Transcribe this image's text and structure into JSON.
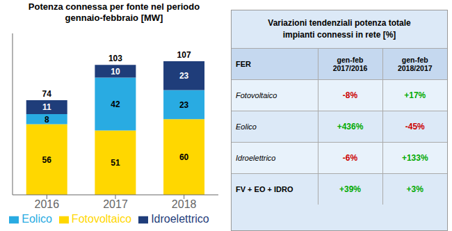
{
  "chart_data": [
    {
      "type": "bar",
      "title": "Potenza connessa per fonte nel periodo\ngennaio-febbraio [MW]",
      "categories": [
        "2016",
        "2017",
        "2018"
      ],
      "series": [
        {
          "name": "Fotovoltaico",
          "color": "#FFD700",
          "values": [
            56,
            51,
            60
          ]
        },
        {
          "name": "Eolico",
          "color": "#29ABE2",
          "values": [
            8,
            42,
            23
          ]
        },
        {
          "name": "Idroelettrico",
          "color": "#1F3D7A",
          "values": [
            11,
            10,
            23
          ]
        }
      ],
      "totals": [
        74,
        103,
        107
      ],
      "stacked": true,
      "data_labels": true,
      "ylim": [
        0,
        128
      ],
      "yticks": [],
      "tick_labels": "x",
      "grid": false,
      "legend": "bottom"
    },
    {
      "type": "table",
      "title": "Variazioni tendenziali potenza totale\nimpianti connessi in rete [%]",
      "xlabel": "FER",
      "categories": [
        "Fotovoltaico",
        "Eolico",
        "Idroelettrico",
        "FV + EO + IDRO"
      ],
      "series": [
        {
          "name": "gen-feb\n2017/2016",
          "values": [
            -8,
            436,
            -6,
            39
          ],
          "value_labels": [
            "-8%",
            "+436%",
            "-6%",
            "+39%"
          ],
          "colors": [
            "#cc0000",
            "#00aa00",
            "#cc0000",
            "#00aa00"
          ]
        },
        {
          "name": "gen-feb\n2018/2017",
          "values": [
            17,
            -45,
            133,
            3
          ],
          "value_labels": [
            "+17%",
            "-45%",
            "+133%",
            "+3%"
          ],
          "colors": [
            "#00aa00",
            "#cc0000",
            "#00aa00",
            "#00aa00"
          ]
        }
      ]
    }
  ]
}
